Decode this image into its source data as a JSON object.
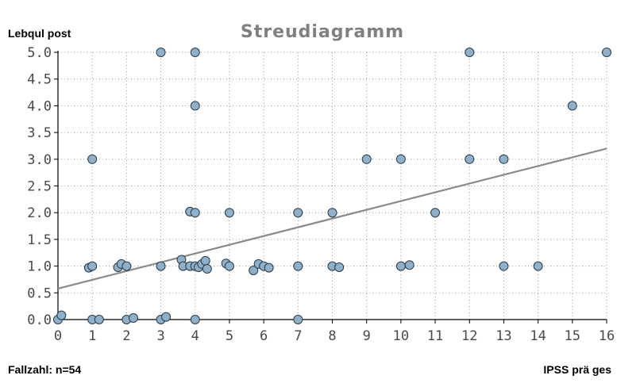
{
  "chart_data": {
    "type": "scatter",
    "title": "Streudiagramm",
    "ylabel": "Lebqul post",
    "xlabel": "IPSS prä ges",
    "footer_note": "Fallzahl: n=54",
    "xlim": [
      0,
      16
    ],
    "ylim": [
      0,
      5
    ],
    "x_ticks": [
      "0",
      "1",
      "2",
      "3",
      "4",
      "5",
      "6",
      "7",
      "8",
      "9",
      "10",
      "11",
      "12",
      "13",
      "14",
      "15",
      "16"
    ],
    "y_ticks": [
      "0.0",
      "0.5",
      "1.0",
      "1.5",
      "2.0",
      "2.5",
      "3.0",
      "3.5",
      "4.0",
      "4.5",
      "5.0"
    ],
    "grid": true,
    "colors": {
      "marker_fill": "#8fb0c8",
      "marker_edge": "#2a3a48",
      "fit_line": "#8a8a8a",
      "title": "#808080"
    },
    "trendline": {
      "x": [
        0,
        16
      ],
      "y": [
        0.58,
        3.2
      ]
    },
    "points": [
      {
        "x": 0,
        "y": 0
      },
      {
        "x": 0.1,
        "y": 0.08
      },
      {
        "x": 1,
        "y": 0
      },
      {
        "x": 1.2,
        "y": 0
      },
      {
        "x": 2,
        "y": 0
      },
      {
        "x": 2.2,
        "y": 0.03
      },
      {
        "x": 3,
        "y": 0
      },
      {
        "x": 3.15,
        "y": 0.05
      },
      {
        "x": 4,
        "y": 0
      },
      {
        "x": 7,
        "y": 0
      },
      {
        "x": 0.9,
        "y": 0.97
      },
      {
        "x": 1,
        "y": 1
      },
      {
        "x": 1.75,
        "y": 0.98
      },
      {
        "x": 1.85,
        "y": 1.04
      },
      {
        "x": 2,
        "y": 1
      },
      {
        "x": 3,
        "y": 1
      },
      {
        "x": 3.6,
        "y": 1.12
      },
      {
        "x": 3.65,
        "y": 1
      },
      {
        "x": 3.85,
        "y": 1
      },
      {
        "x": 4,
        "y": 1
      },
      {
        "x": 4.1,
        "y": 0.98
      },
      {
        "x": 4.2,
        "y": 1.04
      },
      {
        "x": 4.3,
        "y": 1.1
      },
      {
        "x": 4.35,
        "y": 0.95
      },
      {
        "x": 4.9,
        "y": 1.05
      },
      {
        "x": 5,
        "y": 1
      },
      {
        "x": 5.7,
        "y": 0.92
      },
      {
        "x": 5.85,
        "y": 1.04
      },
      {
        "x": 6,
        "y": 1
      },
      {
        "x": 6.15,
        "y": 0.97
      },
      {
        "x": 7,
        "y": 1
      },
      {
        "x": 8,
        "y": 1
      },
      {
        "x": 8.2,
        "y": 0.98
      },
      {
        "x": 10,
        "y": 1
      },
      {
        "x": 10.25,
        "y": 1.02
      },
      {
        "x": 13,
        "y": 1
      },
      {
        "x": 14,
        "y": 1
      },
      {
        "x": 3.85,
        "y": 2.02
      },
      {
        "x": 4,
        "y": 2
      },
      {
        "x": 5,
        "y": 2
      },
      {
        "x": 7,
        "y": 2
      },
      {
        "x": 8,
        "y": 2
      },
      {
        "x": 11,
        "y": 2
      },
      {
        "x": 1,
        "y": 3
      },
      {
        "x": 9,
        "y": 3
      },
      {
        "x": 10,
        "y": 3
      },
      {
        "x": 12,
        "y": 3
      },
      {
        "x": 13,
        "y": 3
      },
      {
        "x": 4,
        "y": 4
      },
      {
        "x": 15,
        "y": 4
      },
      {
        "x": 3,
        "y": 5
      },
      {
        "x": 4,
        "y": 5
      },
      {
        "x": 12,
        "y": 5
      },
      {
        "x": 16,
        "y": 5
      }
    ]
  }
}
